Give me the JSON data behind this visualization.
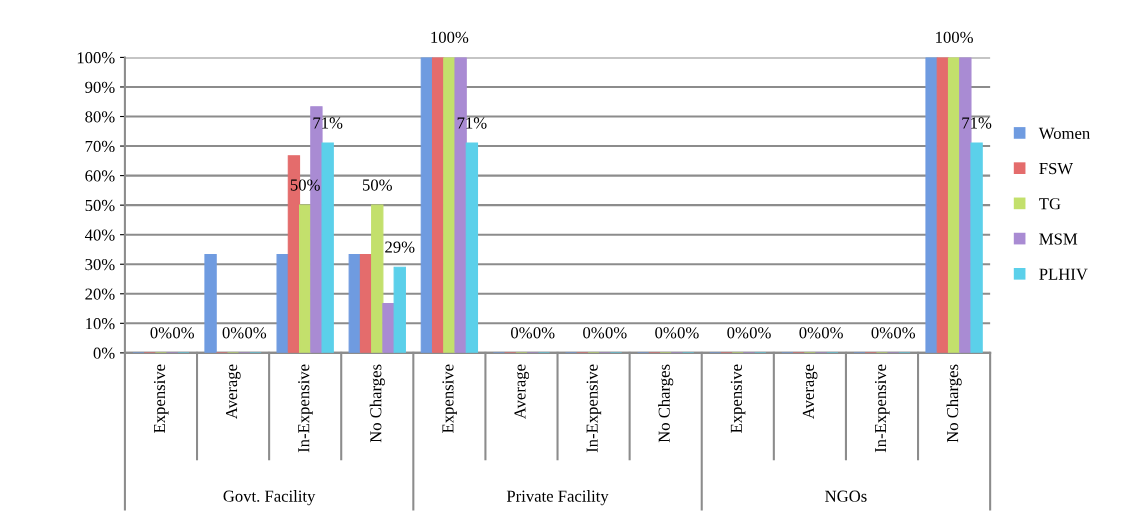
{
  "chart_data": {
    "type": "bar",
    "categories": [
      "Expensive",
      "Average",
      "In-Expensive",
      "No Charges",
      "Expensive",
      "Average",
      "In-Expensive",
      "No Charges",
      "Expensive",
      "Average",
      "In-Expensive",
      "No Charges"
    ],
    "series": [
      {
        "name": "Women",
        "color": "#6f9be0",
        "values": [
          0,
          33.3,
          33.3,
          33.3,
          100,
          0,
          0,
          0,
          0,
          0,
          0,
          100
        ]
      },
      {
        "name": "FSW",
        "color": "#e46c6c",
        "values": [
          0,
          0,
          66.7,
          33.3,
          100,
          0,
          0,
          0,
          0,
          0,
          0,
          100
        ]
      },
      {
        "name": "TG",
        "color": "#c3e06c",
        "values": [
          0,
          0,
          50,
          50,
          100,
          0,
          0,
          0,
          0,
          0,
          0,
          100
        ],
        "value_labels": [
          "0%",
          "0%",
          "50%",
          "50%",
          "100%",
          "0%",
          "0%",
          "0%",
          "0%",
          "0%",
          "0%",
          "100%"
        ]
      },
      {
        "name": "MSM",
        "color": "#a98bd3",
        "values": [
          0,
          0,
          83.3,
          16.7,
          100,
          0,
          0,
          0,
          0,
          0,
          0,
          100
        ]
      },
      {
        "name": "PLHIV",
        "color": "#5bd0ea",
        "values": [
          0,
          0,
          71,
          29,
          71,
          0,
          0,
          0,
          0,
          0,
          0,
          71
        ],
        "value_labels": [
          "0%",
          "0%",
          "71%",
          "29%",
          "71%",
          "0%",
          "0%",
          "0%",
          "0%",
          "0%",
          "0%",
          "71%"
        ]
      }
    ],
    "ylim": [
      0,
      100
    ],
    "yticks": [
      {
        "value": 0,
        "label": "0%"
      },
      {
        "value": 10,
        "label": "10%"
      },
      {
        "value": 20,
        "label": "20%"
      },
      {
        "value": 30,
        "label": "30%"
      },
      {
        "value": 40,
        "label": "40%"
      },
      {
        "value": 50,
        "label": "50%"
      },
      {
        "value": 60,
        "label": "60%"
      },
      {
        "value": 70,
        "label": "70%"
      },
      {
        "value": 80,
        "label": "80%"
      },
      {
        "value": 90,
        "label": "90%"
      },
      {
        "value": 100,
        "label": "100%"
      }
    ],
    "annotations": [
      "Govt. Facility",
      "Private Facility",
      "NGOs"
    ],
    "grid": "y",
    "legend": "right"
  }
}
